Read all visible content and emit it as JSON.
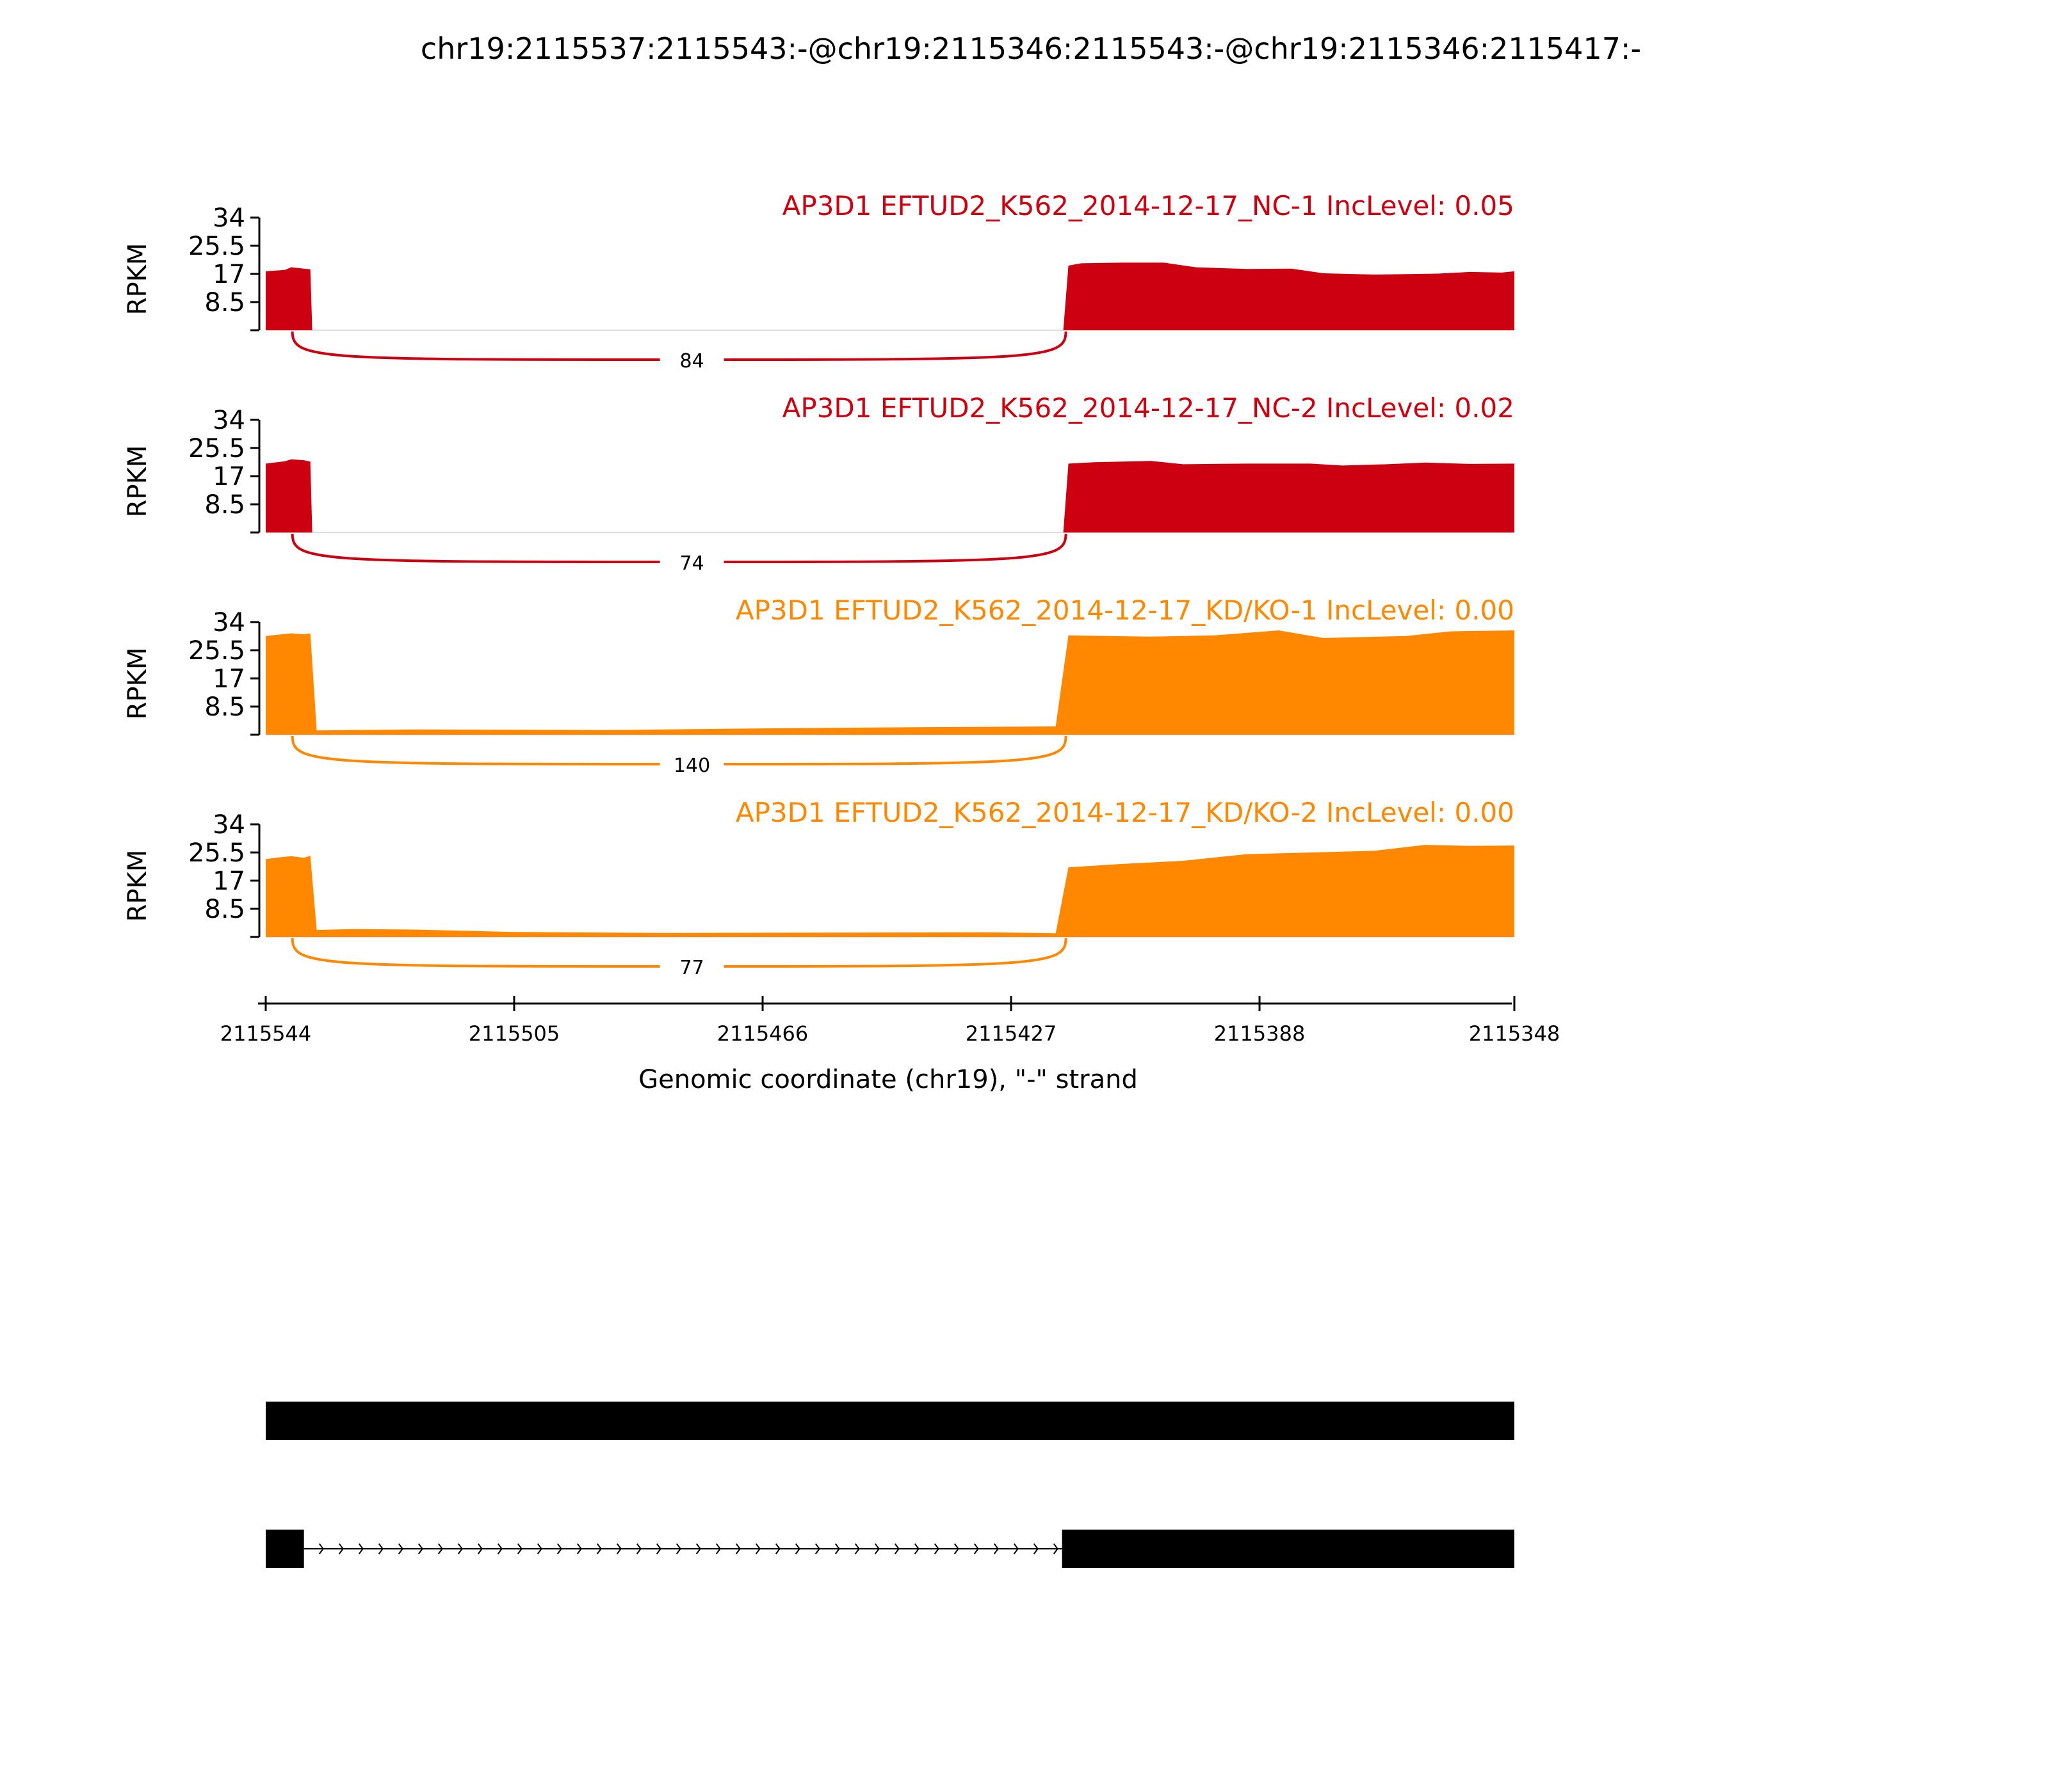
{
  "chart_data": {
    "type": "area",
    "title": "chr19:2115537:2115543:-@chr19:2115346:2115543:-@chr19:2115346:2115417:-",
    "xlabel": "Genomic coordinate (chr19), \"-\" strand",
    "ylabel": "RPKM",
    "x_ticks": [
      "2115544",
      "2115505",
      "2115466",
      "2115427",
      "2115388",
      "2115348"
    ],
    "x_tick_values": [
      2115544,
      2115505,
      2115466,
      2115427,
      2115388,
      2115348
    ],
    "xlim": [
      2115544,
      2115348
    ],
    "y_ticks": [
      "8.5",
      "17",
      "25.5",
      "34"
    ],
    "y_tick_values": [
      8.5,
      17,
      25.5,
      34
    ],
    "ylim": [
      0,
      34
    ],
    "colors": {
      "NC": "#cc0011",
      "KD": "#ff8800"
    },
    "exon_bounds": {
      "exon1_end": 2115537,
      "exon3_start": 2115418
    },
    "panels": [
      {
        "label": "AP3D1 EFTUD2_K562_2014-12-17_NC-1 IncLevel: 0.05",
        "color": "#cc0011",
        "junction_count": "84",
        "exon1": [
          [
            2115544,
            17.8
          ],
          [
            2115541,
            18.2
          ],
          [
            2115540,
            19.0
          ],
          [
            2115538,
            18.6
          ],
          [
            2115537,
            18.4
          ]
        ],
        "intron": [],
        "exon3": [
          [
            2115418,
            19.5
          ],
          [
            2115416,
            20.2
          ],
          [
            2115410,
            20.4
          ],
          [
            2115403,
            20.4
          ],
          [
            2115398,
            19.0
          ],
          [
            2115390,
            18.5
          ],
          [
            2115383,
            18.6
          ],
          [
            2115378,
            17.2
          ],
          [
            2115370,
            16.8
          ],
          [
            2115360,
            17.1
          ],
          [
            2115355,
            17.6
          ],
          [
            2115350,
            17.4
          ],
          [
            2115348,
            17.8
          ]
        ]
      },
      {
        "label": "AP3D1 EFTUD2_K562_2014-12-17_NC-2 IncLevel: 0.02",
        "color": "#cc0011",
        "junction_count": "74",
        "exon1": [
          [
            2115544,
            20.8
          ],
          [
            2115541,
            21.5
          ],
          [
            2115540,
            22.1
          ],
          [
            2115538,
            21.8
          ],
          [
            2115537,
            21.4
          ]
        ],
        "intron": [],
        "exon3": [
          [
            2115418,
            20.8
          ],
          [
            2115414,
            21.2
          ],
          [
            2115405,
            21.6
          ],
          [
            2115400,
            20.6
          ],
          [
            2115390,
            20.8
          ],
          [
            2115380,
            20.8
          ],
          [
            2115375,
            20.2
          ],
          [
            2115368,
            20.6
          ],
          [
            2115362,
            21.1
          ],
          [
            2115355,
            20.7
          ],
          [
            2115348,
            20.8
          ]
        ]
      },
      {
        "label": "AP3D1 EFTUD2_K562_2014-12-17_KD/KO-1 IncLevel: 0.00",
        "color": "#ff8800",
        "junction_count": "140",
        "exon1": [
          [
            2115544,
            29.8
          ],
          [
            2115542,
            30.2
          ],
          [
            2115540,
            30.6
          ],
          [
            2115538,
            30.3
          ],
          [
            2115537,
            30.6
          ]
        ],
        "intron": [
          [
            2115536,
            1.3
          ],
          [
            2115520,
            1.6
          ],
          [
            2115490,
            1.4
          ],
          [
            2115466,
            1.9
          ],
          [
            2115440,
            2.3
          ],
          [
            2115420,
            2.5
          ]
        ],
        "exon3": [
          [
            2115418,
            30.0
          ],
          [
            2115405,
            29.6
          ],
          [
            2115395,
            30.0
          ],
          [
            2115385,
            31.5
          ],
          [
            2115378,
            29.2
          ],
          [
            2115365,
            29.8
          ],
          [
            2115358,
            31.2
          ],
          [
            2115348,
            31.5
          ]
        ]
      },
      {
        "label": "AP3D1 EFTUD2_K562_2014-12-17_KD/KO-2 IncLevel: 0.00",
        "color": "#ff8800",
        "junction_count": "77",
        "exon1": [
          [
            2115544,
            23.5
          ],
          [
            2115542,
            24.0
          ],
          [
            2115540,
            24.4
          ],
          [
            2115538,
            23.9
          ],
          [
            2115537,
            24.5
          ]
        ],
        "intron": [
          [
            2115536,
            2.1
          ],
          [
            2115530,
            2.4
          ],
          [
            2115520,
            2.2
          ],
          [
            2115505,
            1.5
          ],
          [
            2115480,
            1.2
          ],
          [
            2115460,
            1.3
          ],
          [
            2115430,
            1.4
          ],
          [
            2115420,
            1.1
          ]
        ],
        "exon3": [
          [
            2115418,
            21.0
          ],
          [
            2115410,
            22.0
          ],
          [
            2115400,
            23.0
          ],
          [
            2115390,
            25.0
          ],
          [
            2115380,
            25.5
          ],
          [
            2115370,
            26.0
          ],
          [
            2115362,
            27.8
          ],
          [
            2115355,
            27.5
          ],
          [
            2115348,
            27.6
          ]
        ]
      }
    ]
  },
  "isoforms": [
    {
      "exons": [
        [
          2115544,
          2115348
        ]
      ]
    },
    {
      "exons": [
        [
          2115544,
          2115538
        ],
        [
          2115419,
          2115348
        ]
      ]
    }
  ]
}
